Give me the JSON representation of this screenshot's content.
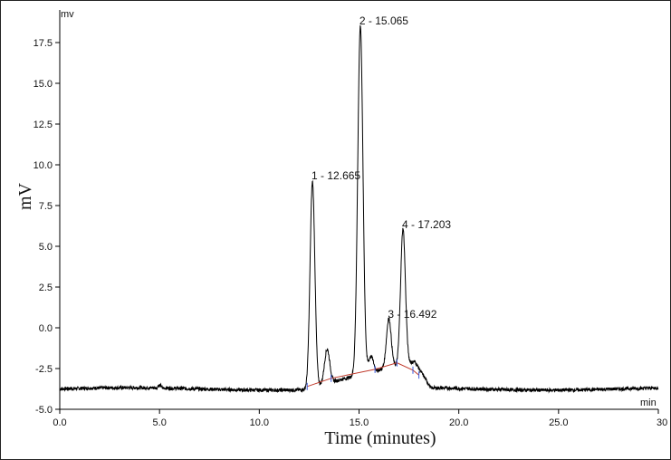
{
  "chart_data": {
    "type": "line",
    "title": "",
    "xlabel": "Time (minutes)",
    "ylabel": "mV",
    "x_unit_label": "min",
    "y_unit_label": "mv",
    "xlim": [
      0,
      30
    ],
    "ylim": [
      -5.0,
      19.5
    ],
    "x_ticks": [
      0.0,
      5.0,
      10.0,
      15.0,
      20.0,
      25.0,
      30.0
    ],
    "x_tick_labels": [
      "0.0",
      "5.0",
      "10.0",
      "15.0",
      "20.0",
      "25.0",
      "30"
    ],
    "y_ticks": [
      -5.0,
      -2.5,
      0.0,
      2.5,
      5.0,
      7.5,
      10.0,
      12.5,
      15.0,
      17.5
    ],
    "y_tick_labels": [
      "-5.0",
      "-2.5",
      "0.0",
      "2.5",
      "5.0",
      "7.5",
      "10.0",
      "12.5",
      "15.0",
      "17.5"
    ],
    "grid": false,
    "series": [
      {
        "color": "#000000",
        "baseline": -3.75,
        "peaks": [
          {
            "rt": 12.665,
            "height": 9.0,
            "width": 0.12
          },
          {
            "rt": 13.4,
            "height": -1.3,
            "width": 0.13
          },
          {
            "rt": 15.065,
            "height": 18.5,
            "width": 0.13
          },
          {
            "rt": 15.6,
            "height": -1.8,
            "width": 0.12
          },
          {
            "rt": 16.492,
            "height": 0.5,
            "width": 0.12
          },
          {
            "rt": 17.203,
            "height": 6.0,
            "width": 0.12
          }
        ]
      }
    ],
    "integration_baseline": {
      "color": "#c0392b",
      "points": [
        [
          12.4,
          -3.6
        ],
        [
          13.6,
          -3.1
        ],
        [
          15.8,
          -2.55
        ],
        [
          16.9,
          -2.15
        ],
        [
          17.7,
          -2.6
        ],
        [
          18.0,
          -2.9
        ]
      ]
    },
    "peak_labels": [
      {
        "text": "1 - 12.665",
        "x": 12.665,
        "y": 9.0
      },
      {
        "text": "2 - 15.065",
        "x": 15.065,
        "y": 18.5
      },
      {
        "text": "3 - 16.492",
        "x": 16.492,
        "y": 0.5
      },
      {
        "text": "4 - 17.203",
        "x": 17.203,
        "y": 6.0
      }
    ]
  }
}
